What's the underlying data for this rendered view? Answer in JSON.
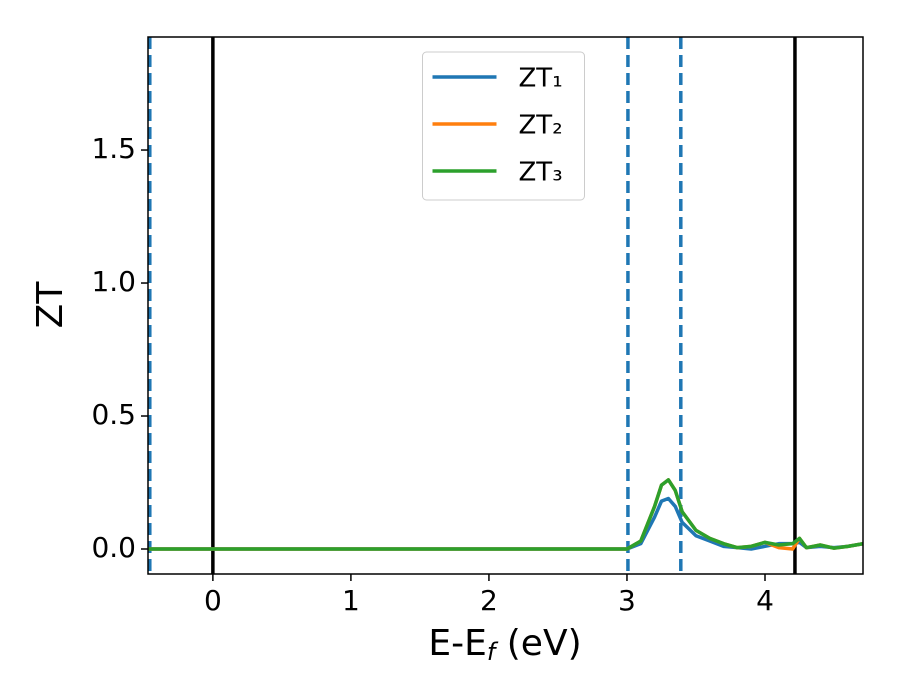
{
  "chart_data": {
    "type": "line",
    "xlabel": [
      "E-E",
      "f",
      " (eV)"
    ],
    "ylabel": "ZT",
    "xlim": [
      -0.47,
      4.71
    ],
    "ylim": [
      -0.094,
      1.925
    ],
    "xticks": [
      0,
      1,
      2,
      3,
      4
    ],
    "yticks": [
      {
        "value": 0,
        "label": "0.0"
      },
      0.5,
      {
        "value": 1,
        "label": "1.0"
      },
      1.5
    ],
    "x": [
      -0.47,
      0,
      1,
      2,
      3.0,
      3.1,
      3.2,
      3.25,
      3.3,
      3.35,
      3.4,
      3.5,
      3.6,
      3.7,
      3.8,
      3.9,
      4.0,
      4.1,
      4.2,
      4.25,
      4.3,
      4.4,
      4.5,
      4.6,
      4.71
    ],
    "series": [
      {
        "name": "ZT₁",
        "color": "#1f77b4",
        "values": [
          0,
          0,
          0,
          0,
          0,
          0.02,
          0.12,
          0.18,
          0.19,
          0.16,
          0.1,
          0.05,
          0.03,
          0.01,
          0.005,
          0,
          0.01,
          0.02,
          0.02,
          0.025,
          0.005,
          0.01,
          0.005,
          0.01,
          0.02
        ]
      },
      {
        "name": "ZT₂",
        "color": "#ff7f0e",
        "values": [
          0,
          0,
          0,
          0,
          0,
          0.03,
          0.16,
          0.24,
          0.26,
          0.22,
          0.14,
          0.07,
          0.04,
          0.02,
          0.005,
          0.01,
          0.025,
          0.005,
          0,
          0.04,
          0.005,
          0.015,
          0.003,
          0.01,
          0.02
        ]
      },
      {
        "name": "ZT₃",
        "color": "#2ca02c",
        "values": [
          0,
          0,
          0,
          0,
          0,
          0.03,
          0.16,
          0.24,
          0.26,
          0.22,
          0.14,
          0.07,
          0.04,
          0.02,
          0.005,
          0.01,
          0.025,
          0.015,
          0.02,
          0.04,
          0.005,
          0.015,
          0.003,
          0.01,
          0.02
        ]
      }
    ],
    "vlines": [
      {
        "x": -0.457,
        "color": "#1f77b4",
        "style": "dashed"
      },
      {
        "x": 0,
        "color": "#000000",
        "style": "solid"
      },
      {
        "x": 3.007,
        "color": "#1f77b4",
        "style": "dashed"
      },
      {
        "x": 3.39,
        "color": "#1f77b4",
        "style": "dashed"
      },
      {
        "x": 4.217,
        "color": "#000000",
        "style": "solid"
      }
    ],
    "legend": "upper center"
  }
}
